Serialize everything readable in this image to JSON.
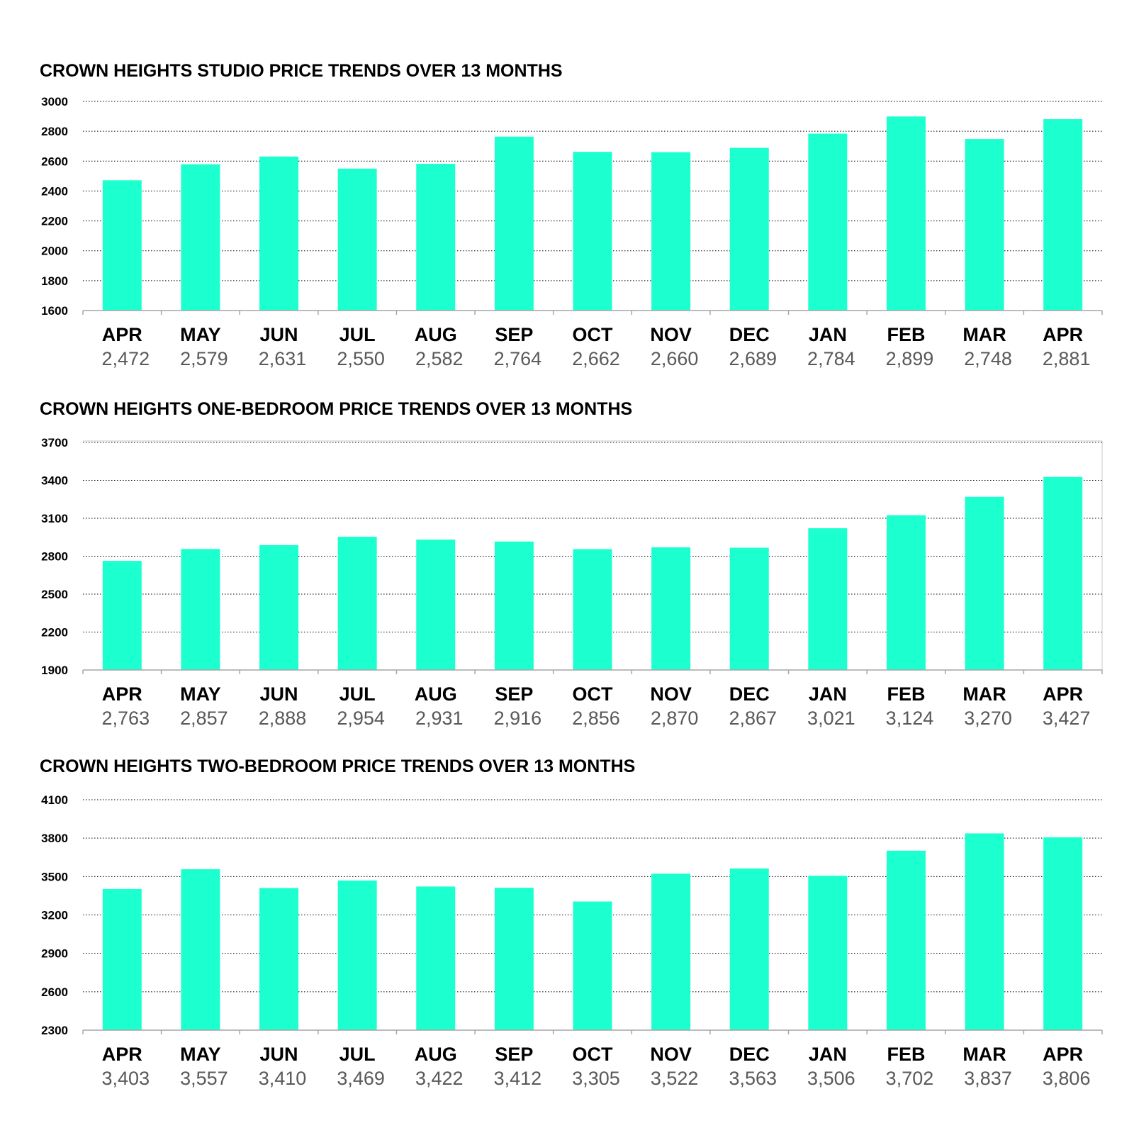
{
  "chart_data": [
    {
      "type": "bar",
      "title": "CROWN HEIGHTS STUDIO PRICE TRENDS OVER 13 MONTHS",
      "categories": [
        "APR",
        "MAY",
        "JUN",
        "JUL",
        "AUG",
        "SEP",
        "OCT",
        "NOV",
        "DEC",
        "JAN",
        "FEB",
        "MAR",
        "APR"
      ],
      "values": [
        2472,
        2579,
        2631,
        2550,
        2582,
        2764,
        2662,
        2660,
        2689,
        2784,
        2899,
        2748,
        2881
      ],
      "value_labels": [
        "2,472",
        "2,579",
        "2,631",
        "2,550",
        "2,582",
        "2,764",
        "2,662",
        "2,660",
        "2,689",
        "2,784",
        "2,899",
        "2,748",
        "2,881"
      ],
      "ylim": [
        1600,
        3000
      ],
      "yticks": [
        1600,
        1800,
        2000,
        2200,
        2400,
        2600,
        2800,
        3000
      ],
      "xlabel": "",
      "ylabel": "",
      "grid": true,
      "grid_style": "dotted",
      "legend": "none",
      "bar_color": "#1cffcf"
    },
    {
      "type": "bar",
      "title": "CROWN HEIGHTS ONE-BEDROOM PRICE TRENDS OVER 13 MONTHS",
      "categories": [
        "APR",
        "MAY",
        "JUN",
        "JUL",
        "AUG",
        "SEP",
        "OCT",
        "NOV",
        "DEC",
        "JAN",
        "FEB",
        "MAR",
        "APR"
      ],
      "values": [
        2763,
        2857,
        2888,
        2954,
        2931,
        2916,
        2856,
        2870,
        2867,
        3021,
        3124,
        3270,
        3427
      ],
      "value_labels": [
        "2,763",
        "2,857",
        "2,888",
        "2,954",
        "2,931",
        "2,916",
        "2,856",
        "2,870",
        "2,867",
        "3,021",
        "3,124",
        "3,270",
        "3,427"
      ],
      "ylim": [
        1900,
        3800
      ],
      "yticks": [
        1900,
        2200,
        2500,
        2800,
        3100,
        3400,
        3700
      ],
      "xlabel": "",
      "ylabel": "",
      "grid": true,
      "grid_style": "dotted",
      "legend": "none",
      "bar_color": "#1cffcf"
    },
    {
      "type": "bar",
      "title": "CROWN HEIGHTS TWO-BEDROOM PRICE TRENDS OVER 13 MONTHS",
      "categories": [
        "APR",
        "MAY",
        "JUN",
        "JUL",
        "AUG",
        "SEP",
        "OCT",
        "NOV",
        "DEC",
        "JAN",
        "FEB",
        "MAR",
        "APR"
      ],
      "values": [
        3403,
        3557,
        3410,
        3469,
        3422,
        3412,
        3305,
        3522,
        3563,
        3506,
        3702,
        3837,
        3806
      ],
      "value_labels": [
        "3,403",
        "3,557",
        "3,410",
        "3,469",
        "3,422",
        "3,412",
        "3,305",
        "3,522",
        "3,563",
        "3,506",
        "3,702",
        "3,837",
        "3,806"
      ],
      "ylim": [
        2300,
        4100
      ],
      "yticks": [
        2300,
        2600,
        2900,
        3200,
        3500,
        3800,
        4100
      ],
      "xlabel": "",
      "ylabel": "",
      "grid": true,
      "grid_style": "dotted",
      "legend": "none",
      "bar_color": "#1cffcf"
    }
  ]
}
